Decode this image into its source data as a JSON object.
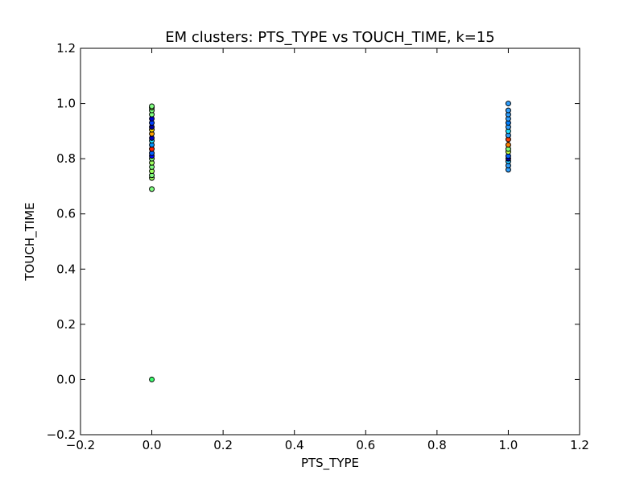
{
  "chart_data": {
    "type": "scatter",
    "title": "EM clusters: PTS_TYPE vs TOUCH_TIME, k=15",
    "xlabel": "PTS_TYPE",
    "ylabel": "TOUCH_TIME",
    "xlim": [
      -0.2,
      1.2
    ],
    "ylim": [
      -0.2,
      1.2
    ],
    "xticks": [
      -0.2,
      0.0,
      0.2,
      0.4,
      0.6,
      0.8,
      1.0,
      1.2
    ],
    "yticks": [
      -0.2,
      0.0,
      0.2,
      0.4,
      0.6,
      0.8,
      1.0,
      1.2
    ],
    "xtick_labels": [
      "−0.2",
      "0.0",
      "0.2",
      "0.4",
      "0.6",
      "0.8",
      "1.0",
      "1.2"
    ],
    "ytick_labels": [
      "−0.2",
      "0.0",
      "0.2",
      "0.4",
      "0.6",
      "0.8",
      "1.0",
      "1.2"
    ],
    "grid": false,
    "points": [
      {
        "x": 0.0,
        "y": 0.0,
        "color": "#40ff70"
      },
      {
        "x": 0.0,
        "y": 0.69,
        "color": "#80ff80"
      },
      {
        "x": 0.0,
        "y": 0.73,
        "color": "#a0ff60"
      },
      {
        "x": 0.0,
        "y": 0.74,
        "color": "#80ff80"
      },
      {
        "x": 0.0,
        "y": 0.755,
        "color": "#a0ff60"
      },
      {
        "x": 0.0,
        "y": 0.77,
        "color": "#80ff80"
      },
      {
        "x": 0.0,
        "y": 0.785,
        "color": "#a0ff60"
      },
      {
        "x": 0.0,
        "y": 0.8,
        "color": "#80ff80"
      },
      {
        "x": 0.0,
        "y": 0.81,
        "color": "#0000ff"
      },
      {
        "x": 0.0,
        "y": 0.82,
        "color": "#0060ff"
      },
      {
        "x": 0.0,
        "y": 0.835,
        "color": "#ff2000"
      },
      {
        "x": 0.0,
        "y": 0.85,
        "color": "#0090ff"
      },
      {
        "x": 0.0,
        "y": 0.865,
        "color": "#20e0ff"
      },
      {
        "x": 0.0,
        "y": 0.875,
        "color": "#0000c0"
      },
      {
        "x": 0.0,
        "y": 0.89,
        "color": "#ffa000"
      },
      {
        "x": 0.0,
        "y": 0.905,
        "color": "#ffe000"
      },
      {
        "x": 0.0,
        "y": 0.915,
        "color": "#0000a0"
      },
      {
        "x": 0.0,
        "y": 0.93,
        "color": "#0040ff"
      },
      {
        "x": 0.0,
        "y": 0.945,
        "color": "#0000d0"
      },
      {
        "x": 0.0,
        "y": 0.96,
        "color": "#80ff80"
      },
      {
        "x": 0.0,
        "y": 0.975,
        "color": "#80ff80"
      },
      {
        "x": 0.0,
        "y": 0.985,
        "color": "#a0ff60"
      },
      {
        "x": 0.0,
        "y": 0.99,
        "color": "#80ff80"
      },
      {
        "x": 1.0,
        "y": 0.76,
        "color": "#30a0ff"
      },
      {
        "x": 1.0,
        "y": 0.775,
        "color": "#30a0ff"
      },
      {
        "x": 1.0,
        "y": 0.79,
        "color": "#20c0ff"
      },
      {
        "x": 1.0,
        "y": 0.8,
        "color": "#0000a0"
      },
      {
        "x": 1.0,
        "y": 0.81,
        "color": "#0060ff"
      },
      {
        "x": 1.0,
        "y": 0.825,
        "color": "#c0ff40"
      },
      {
        "x": 1.0,
        "y": 0.835,
        "color": "#80ff80"
      },
      {
        "x": 1.0,
        "y": 0.85,
        "color": "#ff8000"
      },
      {
        "x": 1.0,
        "y": 0.87,
        "color": "#ff4000"
      },
      {
        "x": 1.0,
        "y": 0.885,
        "color": "#30a0ff"
      },
      {
        "x": 1.0,
        "y": 0.9,
        "color": "#20e0ff"
      },
      {
        "x": 1.0,
        "y": 0.915,
        "color": "#30a0ff"
      },
      {
        "x": 1.0,
        "y": 0.93,
        "color": "#0080ff"
      },
      {
        "x": 1.0,
        "y": 0.945,
        "color": "#30a0ff"
      },
      {
        "x": 1.0,
        "y": 0.96,
        "color": "#30a0ff"
      },
      {
        "x": 1.0,
        "y": 0.975,
        "color": "#30a0ff"
      },
      {
        "x": 1.0,
        "y": 1.0,
        "color": "#30a0ff"
      }
    ]
  }
}
